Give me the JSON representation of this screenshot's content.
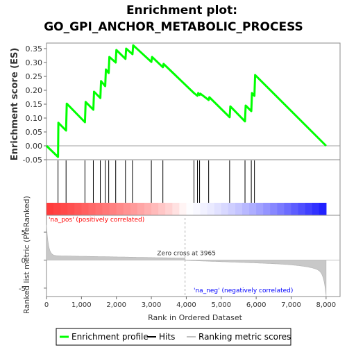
{
  "chart_data": {
    "type": "line",
    "title_line1": "Enrichment plot:",
    "title_line2": "GO_GPI_ANCHOR_METABOLIC_PROCESS",
    "es_panel": {
      "ylabel": "Enrichment score (ES)",
      "ylim": [
        -0.05,
        0.37
      ],
      "yticks": [
        "-0.05",
        "0.00",
        "0.05",
        "0.10",
        "0.15",
        "0.20",
        "0.25",
        "0.30",
        "0.35"
      ],
      "ytick_values": [
        -0.05,
        0.0,
        0.05,
        0.1,
        0.15,
        0.2,
        0.25,
        0.3,
        0.35
      ],
      "series_name": "Enrichment profile",
      "series_color": "#00ff00",
      "points": [
        [
          0,
          0.0
        ],
        [
          330,
          -0.04
        ],
        [
          340,
          0.083
        ],
        [
          560,
          0.055
        ],
        [
          580,
          0.152
        ],
        [
          1100,
          0.085
        ],
        [
          1120,
          0.158
        ],
        [
          1340,
          0.13
        ],
        [
          1360,
          0.195
        ],
        [
          1540,
          0.172
        ],
        [
          1560,
          0.233
        ],
        [
          1680,
          0.215
        ],
        [
          1700,
          0.275
        ],
        [
          1780,
          0.262
        ],
        [
          1800,
          0.32
        ],
        [
          1980,
          0.3
        ],
        [
          2000,
          0.345
        ],
        [
          2260,
          0.313
        ],
        [
          2280,
          0.35
        ],
        [
          2460,
          0.33
        ],
        [
          2480,
          0.362
        ],
        [
          3000,
          0.302
        ],
        [
          3020,
          0.32
        ],
        [
          3330,
          0.283
        ],
        [
          3350,
          0.295
        ],
        [
          4220,
          0.19
        ],
        [
          4320,
          0.18
        ],
        [
          4340,
          0.19
        ],
        [
          4380,
          0.183
        ],
        [
          4400,
          0.188
        ],
        [
          4640,
          0.165
        ],
        [
          4660,
          0.175
        ],
        [
          5240,
          0.103
        ],
        [
          5260,
          0.142
        ],
        [
          5680,
          0.088
        ],
        [
          5700,
          0.145
        ],
        [
          5860,
          0.125
        ],
        [
          5880,
          0.19
        ],
        [
          5950,
          0.18
        ],
        [
          5970,
          0.255
        ],
        [
          8000,
          0.0
        ]
      ]
    },
    "hits_panel": {
      "series_name": "Hits",
      "hit_positions": [
        330,
        560,
        1100,
        1340,
        1540,
        1680,
        1780,
        1980,
        2260,
        2460,
        3000,
        3330,
        4220,
        4320,
        4380,
        4640,
        5240,
        5680,
        5860,
        5950
      ]
    },
    "color_bar": {
      "positive_label": "'na_pos' (positively correlated)",
      "negative_label": "'na_neg' (negatively correlated)",
      "positive_color": "#ff0000",
      "negative_color": "#0000ff"
    },
    "metric_panel": {
      "ylabel": "Ranked list metric (PreRanked)",
      "ylim": [
        -6.5,
        8
      ],
      "yticks": [
        "-5",
        "0",
        "5"
      ],
      "ytick_values": [
        -5,
        0,
        5
      ],
      "series_name": "Ranking metric scores",
      "zero_cross_label": "Zero cross at 3965",
      "zero_cross": 3965
    },
    "xaxis": {
      "xlabel": "Rank in Ordered Dataset",
      "xlim": [
        0,
        8400
      ],
      "xticks": [
        "0",
        "1,000",
        "2,000",
        "3,000",
        "4,000",
        "5,000",
        "6,000",
        "7,000",
        "8,000"
      ],
      "xtick_values": [
        0,
        1000,
        2000,
        3000,
        4000,
        5000,
        6000,
        7000,
        8000
      ],
      "n_genes": 8000
    },
    "legend": {
      "placement": "bottom",
      "items": [
        {
          "label": "Enrichment profile",
          "color": "#00ff00"
        },
        {
          "label": "Hits",
          "color": "#000000"
        },
        {
          "label": "Ranking metric scores",
          "color": "#c0c0c0"
        }
      ]
    }
  }
}
